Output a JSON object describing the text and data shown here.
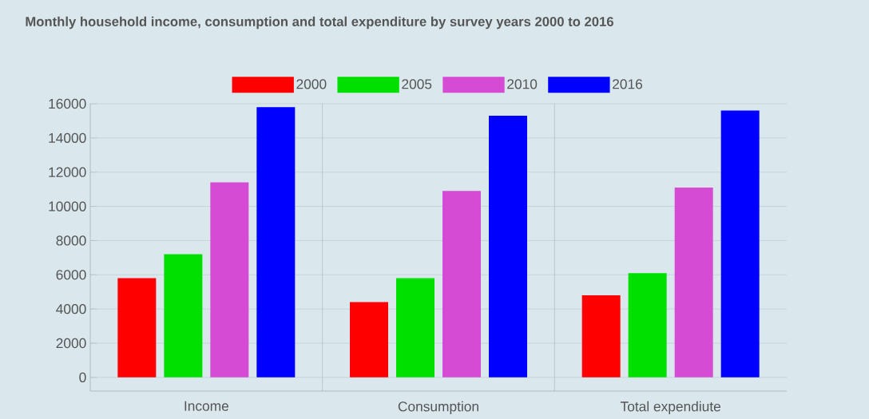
{
  "chart_data": {
    "type": "bar",
    "title": "Monthly household income, consumption and total expenditure by survey years 2000 to 2016",
    "categories": [
      "Income",
      "Consumption",
      "Total expendiute"
    ],
    "series": [
      {
        "name": "2000",
        "color": "#ff0000",
        "values": [
          5800,
          4400,
          4800
        ]
      },
      {
        "name": "2005",
        "color": "#00e000",
        "values": [
          7200,
          5800,
          6100
        ]
      },
      {
        "name": "2010",
        "color": "#d54bd4",
        "values": [
          11400,
          10900,
          11100
        ]
      },
      {
        "name": "2016",
        "color": "#0000ff",
        "values": [
          15800,
          15300,
          15600
        ]
      }
    ],
    "ylim": [
      -800,
      16000
    ],
    "yticks": [
      0,
      2000,
      4000,
      6000,
      8000,
      10000,
      12000,
      14000,
      16000
    ],
    "grid": true,
    "legend": "top"
  }
}
